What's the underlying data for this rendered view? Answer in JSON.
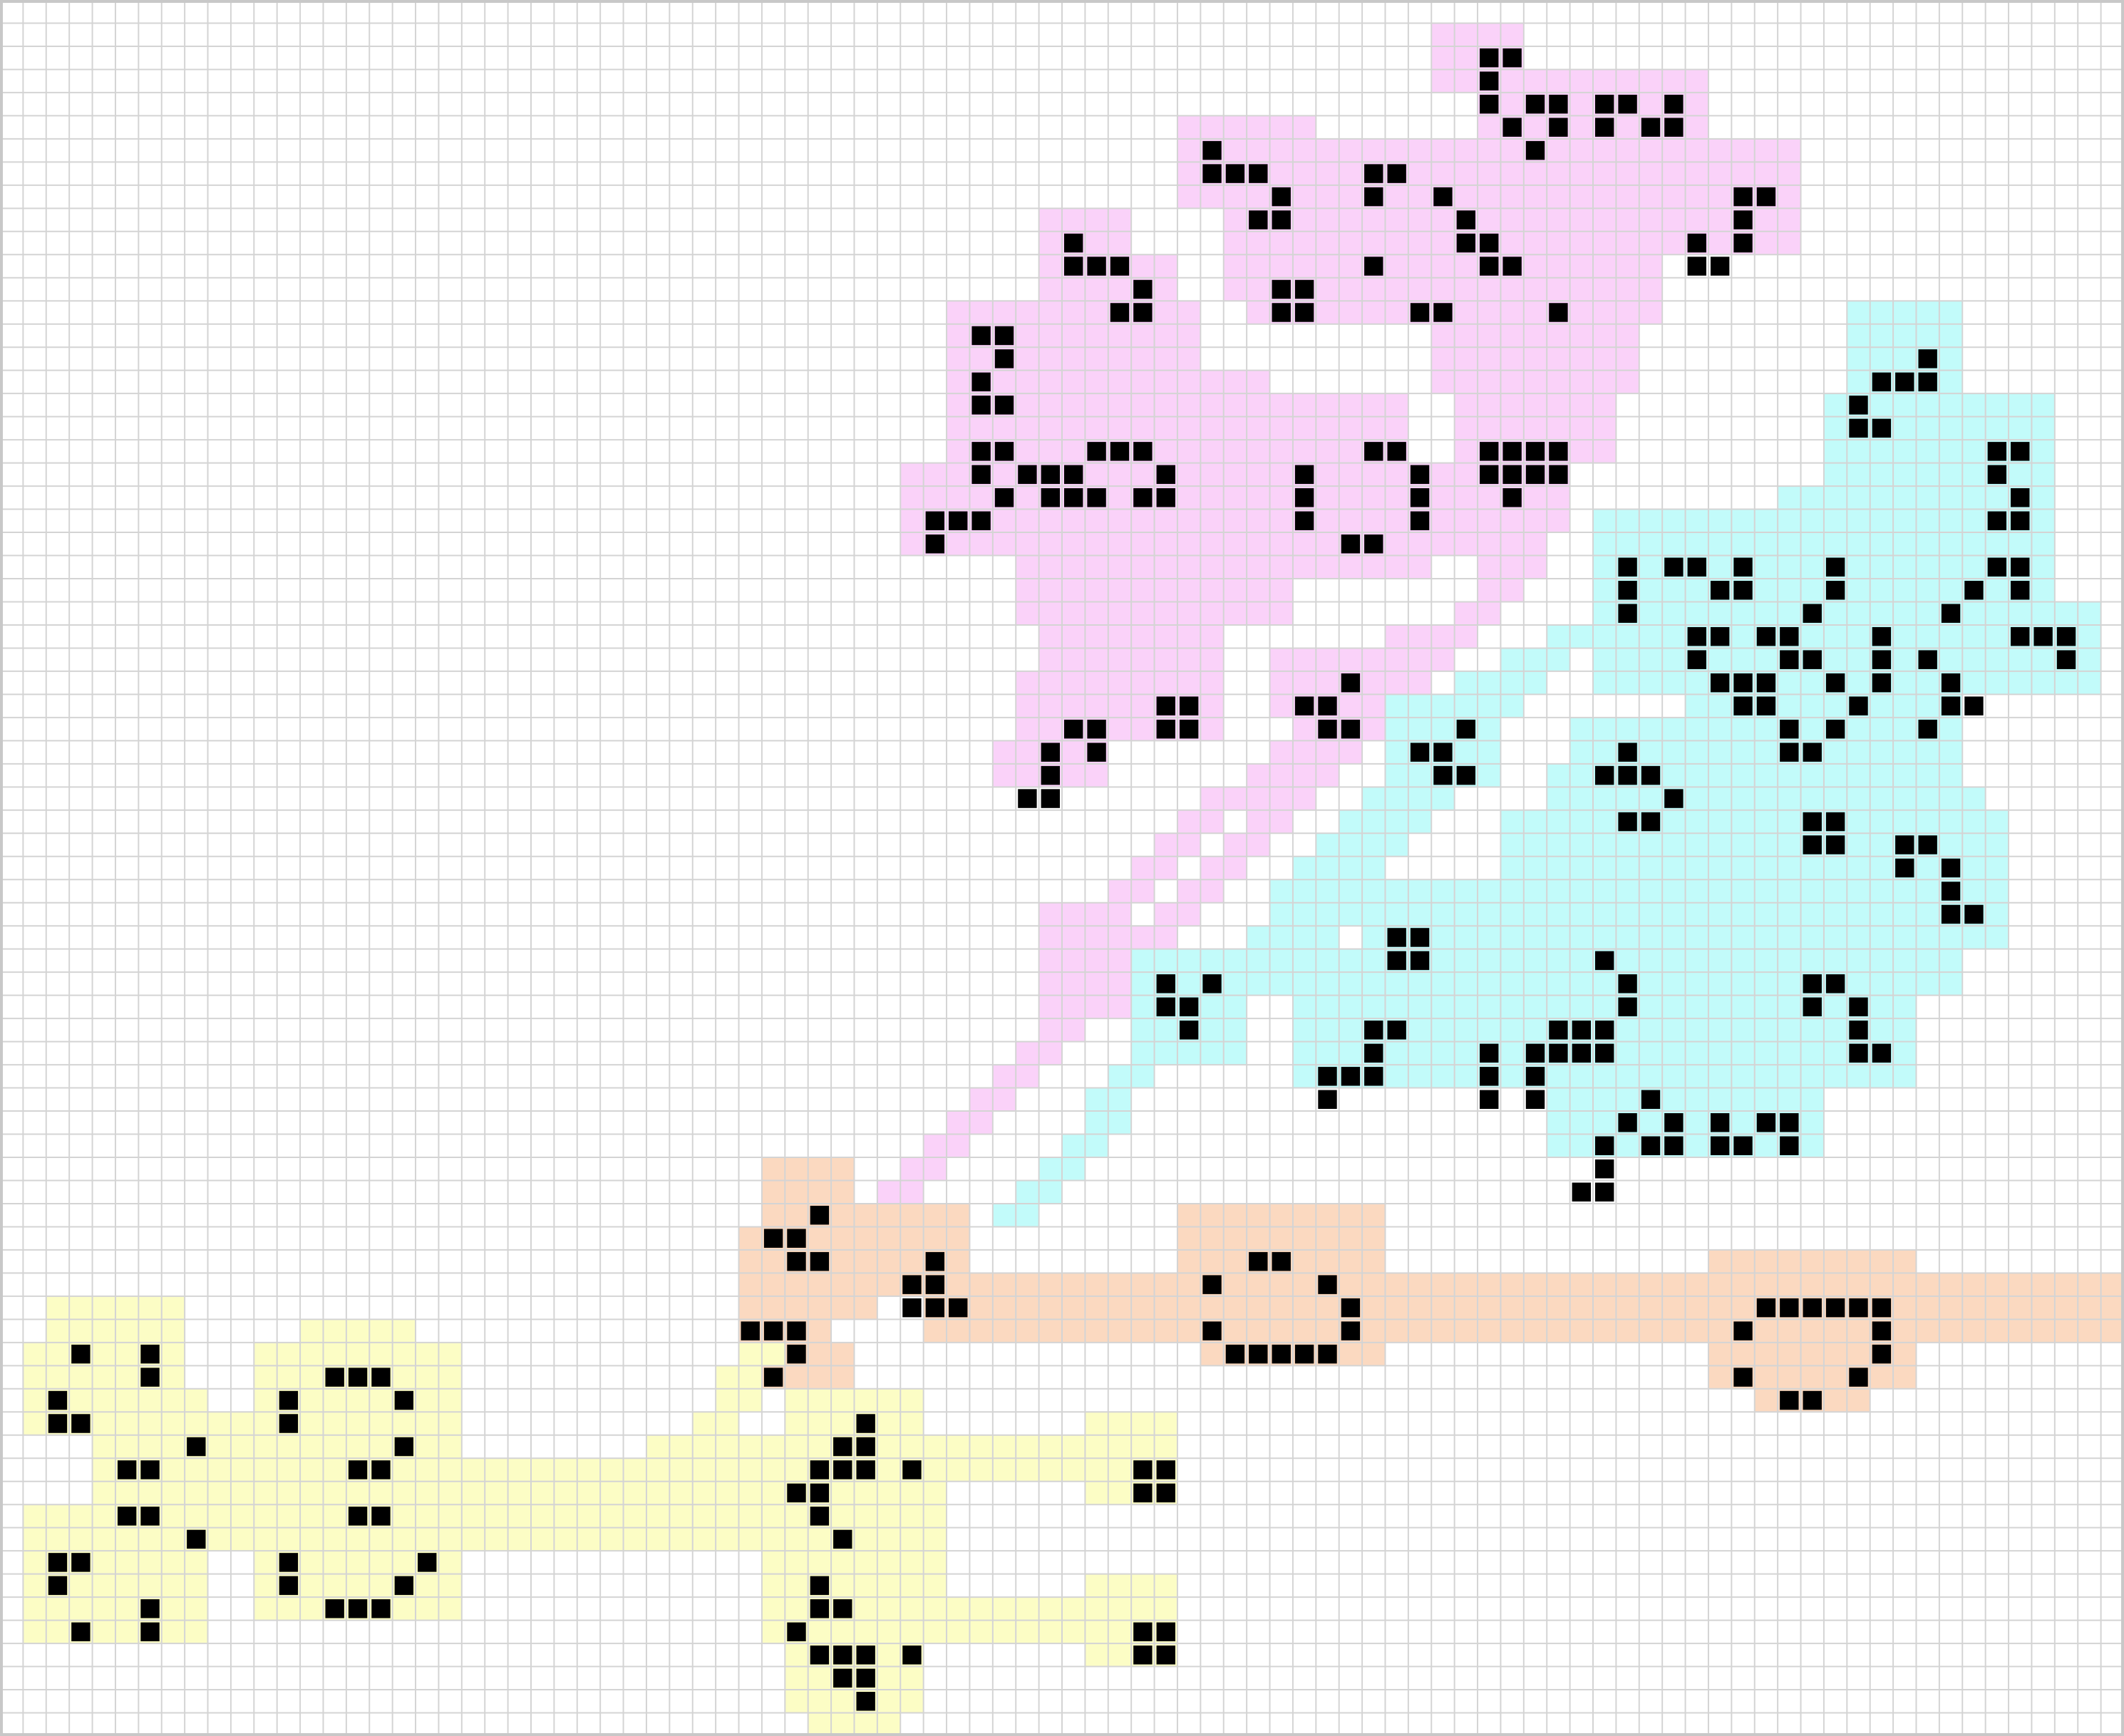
{
  "board": {
    "cols": 92,
    "rows": 75,
    "background": "#ffffff",
    "grid_color": "#d4d4d4",
    "frame_color": "#c8c8c8",
    "live_cell_color": "#000000"
  },
  "regions": [
    {
      "name": "pink-region",
      "color": "#fad2f9",
      "rects": [
        [
          62,
          1,
          66,
          4
        ],
        [
          64,
          3,
          74,
          8
        ],
        [
          57,
          6,
          78,
          11
        ],
        [
          51,
          5,
          57,
          9
        ],
        [
          53,
          8,
          58,
          13
        ],
        [
          58,
          6,
          64,
          14
        ],
        [
          45,
          9,
          49,
          13
        ],
        [
          45,
          11,
          51,
          15
        ],
        [
          54,
          11,
          72,
          14
        ],
        [
          41,
          13,
          52,
          17
        ],
        [
          41,
          16,
          55,
          18
        ],
        [
          41,
          17,
          61,
          23
        ],
        [
          39,
          20,
          64,
          24
        ],
        [
          41,
          22,
          54,
          24
        ],
        [
          44,
          24,
          56,
          27
        ],
        [
          45,
          27,
          53,
          29
        ],
        [
          44,
          29,
          53,
          32
        ],
        [
          43,
          32,
          48,
          34
        ],
        [
          62,
          14,
          71,
          17
        ],
        [
          63,
          17,
          70,
          20
        ],
        [
          63,
          20,
          68,
          23
        ],
        [
          64,
          22,
          67,
          25
        ],
        [
          55,
          28,
          60,
          31
        ],
        [
          56,
          31,
          58,
          34
        ],
        [
          45,
          39,
          49,
          44
        ],
        [
          55,
          22,
          62,
          25
        ]
      ],
      "paths": [
        [
          [
            65,
            24
          ],
          [
            49,
            40
          ]
        ],
        [
          [
            60,
            27
          ],
          [
            46,
            40
          ]
        ],
        [
          [
            46,
            43
          ],
          [
            38,
            51
          ]
        ]
      ]
    },
    {
      "name": "cyan-region",
      "color": "#c2fbfa",
      "rects": [
        [
          80,
          13,
          85,
          18
        ],
        [
          79,
          17,
          89,
          23
        ],
        [
          77,
          21,
          89,
          27
        ],
        [
          75,
          23,
          89,
          29
        ],
        [
          69,
          22,
          87,
          30
        ],
        [
          70,
          26,
          91,
          30
        ],
        [
          73,
          28,
          84,
          34
        ],
        [
          77,
          30,
          85,
          35
        ],
        [
          60,
          30,
          65,
          34
        ],
        [
          68,
          31,
          74,
          35
        ],
        [
          67,
          33,
          85,
          43
        ],
        [
          65,
          35,
          78,
          39
        ],
        [
          59,
          38,
          82,
          43
        ],
        [
          56,
          41,
          83,
          47
        ],
        [
          67,
          44,
          79,
          50
        ],
        [
          49,
          41,
          54,
          46
        ],
        [
          76,
          34,
          86,
          38
        ],
        [
          77,
          36,
          86,
          40
        ],
        [
          83,
          35,
          87,
          41
        ]
      ],
      "paths": [
        [
          [
            73,
            24
          ],
          [
            60,
            31
          ]
        ],
        [
          [
            65,
            29
          ],
          [
            54,
            42
          ]
        ],
        [
          [
            59,
            34
          ],
          [
            43,
            52
          ]
        ]
      ]
    },
    {
      "name": "peach-region",
      "color": "#fbd9c0",
      "rects": [
        [
          33,
          50,
          37,
          54
        ],
        [
          32,
          53,
          38,
          57
        ],
        [
          32,
          55,
          36,
          60
        ],
        [
          33,
          58,
          37,
          60
        ],
        [
          37,
          52,
          42,
          56
        ],
        [
          40,
          55,
          92,
          58
        ],
        [
          51,
          52,
          60,
          58
        ],
        [
          52,
          56,
          60,
          59
        ],
        [
          74,
          54,
          83,
          60
        ],
        [
          76,
          58,
          81,
          61
        ],
        [
          91,
          55,
          92,
          58
        ]
      ],
      "paths": []
    },
    {
      "name": "yellow-region",
      "color": "#fcfdc5",
      "rects": [
        [
          2,
          56,
          8,
          61
        ],
        [
          1,
          58,
          8,
          62
        ],
        [
          4,
          60,
          9,
          66
        ],
        [
          1,
          65,
          9,
          71
        ],
        [
          2,
          69,
          8,
          71
        ],
        [
          13,
          57,
          18,
          62
        ],
        [
          11,
          58,
          20,
          63
        ],
        [
          12,
          62,
          18,
          67
        ],
        [
          11,
          66,
          20,
          70
        ],
        [
          13,
          68,
          18,
          70
        ],
        [
          6,
          61,
          13,
          67
        ],
        [
          18,
          63,
          35,
          67
        ],
        [
          28,
          62,
          34,
          64
        ],
        [
          34,
          60,
          40,
          74
        ],
        [
          33,
          64,
          41,
          71
        ],
        [
          35,
          62,
          48,
          64
        ],
        [
          35,
          69,
          48,
          71
        ],
        [
          47,
          61,
          51,
          65
        ],
        [
          47,
          68,
          51,
          72
        ],
        [
          35,
          72,
          39,
          75
        ]
      ],
      "paths": [
        [
          [
            32,
            58
          ],
          [
            29,
            62
          ]
        ]
      ]
    }
  ],
  "live_cells": [
    [
      64,
      2
    ],
    [
      65,
      2
    ],
    [
      64,
      3
    ],
    [
      64,
      4
    ],
    [
      66,
      4
    ],
    [
      67,
      4
    ],
    [
      69,
      4
    ],
    [
      70,
      4
    ],
    [
      72,
      4
    ],
    [
      65,
      5
    ],
    [
      67,
      5
    ],
    [
      69,
      5
    ],
    [
      71,
      5
    ],
    [
      72,
      5
    ],
    [
      66,
      6
    ],
    [
      52,
      6
    ],
    [
      52,
      7
    ],
    [
      53,
      7
    ],
    [
      54,
      7
    ],
    [
      55,
      8
    ],
    [
      54,
      9
    ],
    [
      55,
      9
    ],
    [
      59,
      7
    ],
    [
      60,
      7
    ],
    [
      59,
      8
    ],
    [
      62,
      8
    ],
    [
      63,
      9
    ],
    [
      63,
      10
    ],
    [
      64,
      10
    ],
    [
      59,
      11
    ],
    [
      64,
      11
    ],
    [
      65,
      11
    ],
    [
      75,
      8
    ],
    [
      76,
      8
    ],
    [
      75,
      9
    ],
    [
      75,
      10
    ],
    [
      73,
      10
    ],
    [
      73,
      11
    ],
    [
      74,
      11
    ],
    [
      46,
      10
    ],
    [
      46,
      11
    ],
    [
      47,
      11
    ],
    [
      48,
      11
    ],
    [
      49,
      12
    ],
    [
      48,
      13
    ],
    [
      49,
      13
    ],
    [
      55,
      12
    ],
    [
      56,
      12
    ],
    [
      55,
      13
    ],
    [
      56,
      13
    ],
    [
      61,
      13
    ],
    [
      62,
      13
    ],
    [
      67,
      13
    ],
    [
      42,
      14
    ],
    [
      43,
      14
    ],
    [
      43,
      15
    ],
    [
      42,
      16
    ],
    [
      42,
      17
    ],
    [
      43,
      17
    ],
    [
      42,
      19
    ],
    [
      43,
      19
    ],
    [
      47,
      19
    ],
    [
      48,
      19
    ],
    [
      49,
      19
    ],
    [
      42,
      20
    ],
    [
      44,
      20
    ],
    [
      45,
      20
    ],
    [
      46,
      20
    ],
    [
      50,
      20
    ],
    [
      43,
      21
    ],
    [
      45,
      21
    ],
    [
      46,
      21
    ],
    [
      47,
      21
    ],
    [
      49,
      21
    ],
    [
      50,
      21
    ],
    [
      40,
      22
    ],
    [
      41,
      22
    ],
    [
      42,
      22
    ],
    [
      40,
      23
    ],
    [
      59,
      19
    ],
    [
      60,
      19
    ],
    [
      56,
      20
    ],
    [
      61,
      20
    ],
    [
      56,
      21
    ],
    [
      61,
      21
    ],
    [
      56,
      22
    ],
    [
      61,
      22
    ],
    [
      58,
      23
    ],
    [
      59,
      23
    ],
    [
      64,
      19
    ],
    [
      65,
      19
    ],
    [
      66,
      19
    ],
    [
      67,
      19
    ],
    [
      64,
      20
    ],
    [
      65,
      20
    ],
    [
      66,
      20
    ],
    [
      67,
      20
    ],
    [
      65,
      21
    ],
    [
      46,
      31
    ],
    [
      47,
      31
    ],
    [
      50,
      30
    ],
    [
      51,
      30
    ],
    [
      50,
      31
    ],
    [
      51,
      31
    ],
    [
      45,
      32
    ],
    [
      47,
      32
    ],
    [
      45,
      33
    ],
    [
      44,
      34
    ],
    [
      45,
      34
    ],
    [
      58,
      29
    ],
    [
      56,
      30
    ],
    [
      57,
      30
    ],
    [
      57,
      31
    ],
    [
      58,
      31
    ],
    [
      83,
      15
    ],
    [
      81,
      16
    ],
    [
      82,
      16
    ],
    [
      83,
      16
    ],
    [
      80,
      17
    ],
    [
      80,
      18
    ],
    [
      81,
      18
    ],
    [
      86,
      19
    ],
    [
      87,
      19
    ],
    [
      86,
      20
    ],
    [
      87,
      21
    ],
    [
      86,
      22
    ],
    [
      87,
      22
    ],
    [
      70,
      24
    ],
    [
      72,
      24
    ],
    [
      73,
      24
    ],
    [
      75,
      24
    ],
    [
      79,
      24
    ],
    [
      86,
      24
    ],
    [
      87,
      24
    ],
    [
      74,
      25
    ],
    [
      75,
      25
    ],
    [
      79,
      25
    ],
    [
      85,
      25
    ],
    [
      87,
      25
    ],
    [
      70,
      25
    ],
    [
      70,
      26
    ],
    [
      78,
      26
    ],
    [
      84,
      26
    ],
    [
      73,
      27
    ],
    [
      74,
      27
    ],
    [
      76,
      27
    ],
    [
      77,
      27
    ],
    [
      81,
      27
    ],
    [
      87,
      27
    ],
    [
      88,
      27
    ],
    [
      89,
      27
    ],
    [
      73,
      28
    ],
    [
      77,
      28
    ],
    [
      78,
      28
    ],
    [
      81,
      28
    ],
    [
      83,
      28
    ],
    [
      89,
      28
    ],
    [
      74,
      29
    ],
    [
      75,
      29
    ],
    [
      76,
      29
    ],
    [
      79,
      29
    ],
    [
      81,
      29
    ],
    [
      84,
      29
    ],
    [
      75,
      30
    ],
    [
      76,
      30
    ],
    [
      80,
      30
    ],
    [
      84,
      30
    ],
    [
      85,
      30
    ],
    [
      77,
      31
    ],
    [
      79,
      31
    ],
    [
      83,
      31
    ],
    [
      77,
      32
    ],
    [
      78,
      32
    ],
    [
      63,
      31
    ],
    [
      61,
      32
    ],
    [
      62,
      32
    ],
    [
      62,
      33
    ],
    [
      63,
      33
    ],
    [
      70,
      32
    ],
    [
      69,
      33
    ],
    [
      70,
      33
    ],
    [
      71,
      33
    ],
    [
      72,
      34
    ],
    [
      70,
      35
    ],
    [
      71,
      35
    ],
    [
      78,
      35
    ],
    [
      79,
      35
    ],
    [
      78,
      36
    ],
    [
      79,
      36
    ],
    [
      82,
      36
    ],
    [
      83,
      36
    ],
    [
      82,
      37
    ],
    [
      84,
      37
    ],
    [
      84,
      38
    ],
    [
      84,
      39
    ],
    [
      85,
      39
    ],
    [
      60,
      40
    ],
    [
      61,
      40
    ],
    [
      60,
      41
    ],
    [
      61,
      41
    ],
    [
      69,
      41
    ],
    [
      70,
      42
    ],
    [
      70,
      43
    ],
    [
      78,
      42
    ],
    [
      79,
      42
    ],
    [
      78,
      43
    ],
    [
      80,
      43
    ],
    [
      80,
      44
    ],
    [
      80,
      45
    ],
    [
      81,
      45
    ],
    [
      50,
      42
    ],
    [
      52,
      42
    ],
    [
      50,
      43
    ],
    [
      51,
      43
    ],
    [
      51,
      44
    ],
    [
      59,
      44
    ],
    [
      60,
      44
    ],
    [
      59,
      45
    ],
    [
      57,
      46
    ],
    [
      58,
      46
    ],
    [
      59,
      46
    ],
    [
      57,
      47
    ],
    [
      67,
      44
    ],
    [
      68,
      44
    ],
    [
      69,
      44
    ],
    [
      67,
      45
    ],
    [
      68,
      45
    ],
    [
      69,
      45
    ],
    [
      64,
      45
    ],
    [
      66,
      45
    ],
    [
      64,
      46
    ],
    [
      66,
      46
    ],
    [
      64,
      47
    ],
    [
      66,
      47
    ],
    [
      71,
      47
    ],
    [
      70,
      48
    ],
    [
      72,
      48
    ],
    [
      74,
      48
    ],
    [
      76,
      48
    ],
    [
      77,
      48
    ],
    [
      69,
      49
    ],
    [
      71,
      49
    ],
    [
      72,
      49
    ],
    [
      74,
      49
    ],
    [
      75,
      49
    ],
    [
      77,
      49
    ],
    [
      69,
      50
    ],
    [
      68,
      51
    ],
    [
      69,
      51
    ],
    [
      35,
      52
    ],
    [
      33,
      53
    ],
    [
      34,
      53
    ],
    [
      34,
      54
    ],
    [
      35,
      54
    ],
    [
      40,
      54
    ],
    [
      39,
      55
    ],
    [
      40,
      55
    ],
    [
      39,
      56
    ],
    [
      40,
      56
    ],
    [
      41,
      56
    ],
    [
      32,
      57
    ],
    [
      33,
      57
    ],
    [
      34,
      57
    ],
    [
      34,
      58
    ],
    [
      33,
      59
    ],
    [
      54,
      54
    ],
    [
      55,
      54
    ],
    [
      52,
      55
    ],
    [
      57,
      55
    ],
    [
      58,
      56
    ],
    [
      52,
      57
    ],
    [
      58,
      57
    ],
    [
      53,
      58
    ],
    [
      54,
      58
    ],
    [
      55,
      58
    ],
    [
      56,
      58
    ],
    [
      57,
      58
    ],
    [
      76,
      56
    ],
    [
      77,
      56
    ],
    [
      78,
      56
    ],
    [
      79,
      56
    ],
    [
      80,
      56
    ],
    [
      81,
      56
    ],
    [
      75,
      57
    ],
    [
      81,
      57
    ],
    [
      81,
      58
    ],
    [
      75,
      59
    ],
    [
      80,
      59
    ],
    [
      77,
      60
    ],
    [
      78,
      60
    ],
    [
      3,
      58
    ],
    [
      6,
      58
    ],
    [
      6,
      59
    ],
    [
      2,
      60
    ],
    [
      2,
      61
    ],
    [
      3,
      61
    ],
    [
      8,
      62
    ],
    [
      5,
      63
    ],
    [
      6,
      63
    ],
    [
      5,
      65
    ],
    [
      6,
      65
    ],
    [
      8,
      66
    ],
    [
      2,
      67
    ],
    [
      3,
      67
    ],
    [
      2,
      68
    ],
    [
      6,
      69
    ],
    [
      3,
      70
    ],
    [
      6,
      70
    ],
    [
      14,
      59
    ],
    [
      15,
      59
    ],
    [
      16,
      59
    ],
    [
      12,
      60
    ],
    [
      17,
      60
    ],
    [
      12,
      61
    ],
    [
      17,
      62
    ],
    [
      15,
      63
    ],
    [
      16,
      63
    ],
    [
      15,
      65
    ],
    [
      16,
      65
    ],
    [
      18,
      67
    ],
    [
      12,
      67
    ],
    [
      12,
      68
    ],
    [
      17,
      68
    ],
    [
      14,
      69
    ],
    [
      15,
      69
    ],
    [
      16,
      69
    ],
    [
      37,
      61
    ],
    [
      36,
      62
    ],
    [
      37,
      62
    ],
    [
      35,
      63
    ],
    [
      36,
      63
    ],
    [
      37,
      63
    ],
    [
      39,
      63
    ],
    [
      34,
      64
    ],
    [
      35,
      64
    ],
    [
      35,
      65
    ],
    [
      36,
      66
    ],
    [
      49,
      63
    ],
    [
      50,
      63
    ],
    [
      49,
      64
    ],
    [
      50,
      64
    ],
    [
      35,
      68
    ],
    [
      35,
      69
    ],
    [
      36,
      69
    ],
    [
      34,
      70
    ],
    [
      35,
      71
    ],
    [
      36,
      71
    ],
    [
      37,
      71
    ],
    [
      39,
      71
    ],
    [
      36,
      72
    ],
    [
      37,
      72
    ],
    [
      37,
      73
    ],
    [
      49,
      70
    ],
    [
      50,
      70
    ],
    [
      49,
      71
    ],
    [
      50,
      71
    ]
  ]
}
